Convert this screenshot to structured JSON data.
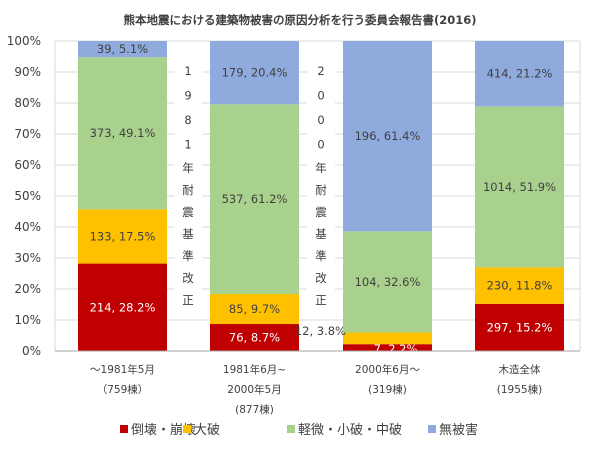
{
  "chart_data": {
    "type": "bar",
    "stacked": true,
    "normalized": true,
    "title": "熊本地震における建築物被害の原因分析を行う委員会報告書(2016)",
    "ylim": [
      0,
      100
    ],
    "yticks": [
      "0%",
      "10%",
      "20%",
      "30%",
      "40%",
      "50%",
      "60%",
      "70%",
      "80%",
      "90%",
      "100%"
    ],
    "grid": true,
    "legend_position": "bottom",
    "categories": [
      [
        "～1981年5月",
        "（759棟）"
      ],
      [
        "1981年6月~",
        "2000年5月",
        "(877棟)"
      ],
      [
        "2000年6月～",
        "(319棟)"
      ],
      [
        "木造全体",
        "(1955棟)"
      ]
    ],
    "series": [
      {
        "name": "倒壊・崩壊",
        "color": "#c00000",
        "label_color": "#ffffff",
        "counts": [
          214,
          76,
          7,
          297
        ],
        "values": [
          28.2,
          8.7,
          2.2,
          15.2
        ],
        "labels": [
          "214, 28.2%",
          "76, 8.7%",
          "7, 2.2%",
          "297, 15.2%"
        ]
      },
      {
        "name": "大破",
        "color": "#ffc000",
        "label_color": "#404040",
        "counts": [
          133,
          85,
          12,
          230
        ],
        "values": [
          17.5,
          9.7,
          3.8,
          11.8
        ],
        "labels": [
          "133, 17.5%",
          "85, 9.7%",
          "12, 3.8%",
          "230, 11.8%"
        ]
      },
      {
        "name": "軽微・小破・中破",
        "color": "#a9d18e",
        "label_color": "#404040",
        "counts": [
          373,
          537,
          104,
          1014
        ],
        "values": [
          49.1,
          61.2,
          32.6,
          51.9
        ],
        "labels": [
          "373, 49.1%",
          "537, 61.2%",
          "104, 32.6%",
          "1014, 51.9%"
        ]
      },
      {
        "name": "無被害",
        "color": "#8faadc",
        "label_color": "#404040",
        "counts": [
          39,
          179,
          196,
          414
        ],
        "values": [
          5.1,
          20.4,
          61.4,
          21.2
        ],
        "labels": [
          "39, 5.1%",
          "179, 20.4%",
          "196, 61.4%",
          "414, 21.2%"
        ]
      }
    ],
    "annotations": [
      {
        "text": "1981年耐震基準改正",
        "between": [
          0,
          1
        ]
      },
      {
        "text": "2000年耐震基準改正",
        "between": [
          1,
          2
        ]
      }
    ]
  }
}
